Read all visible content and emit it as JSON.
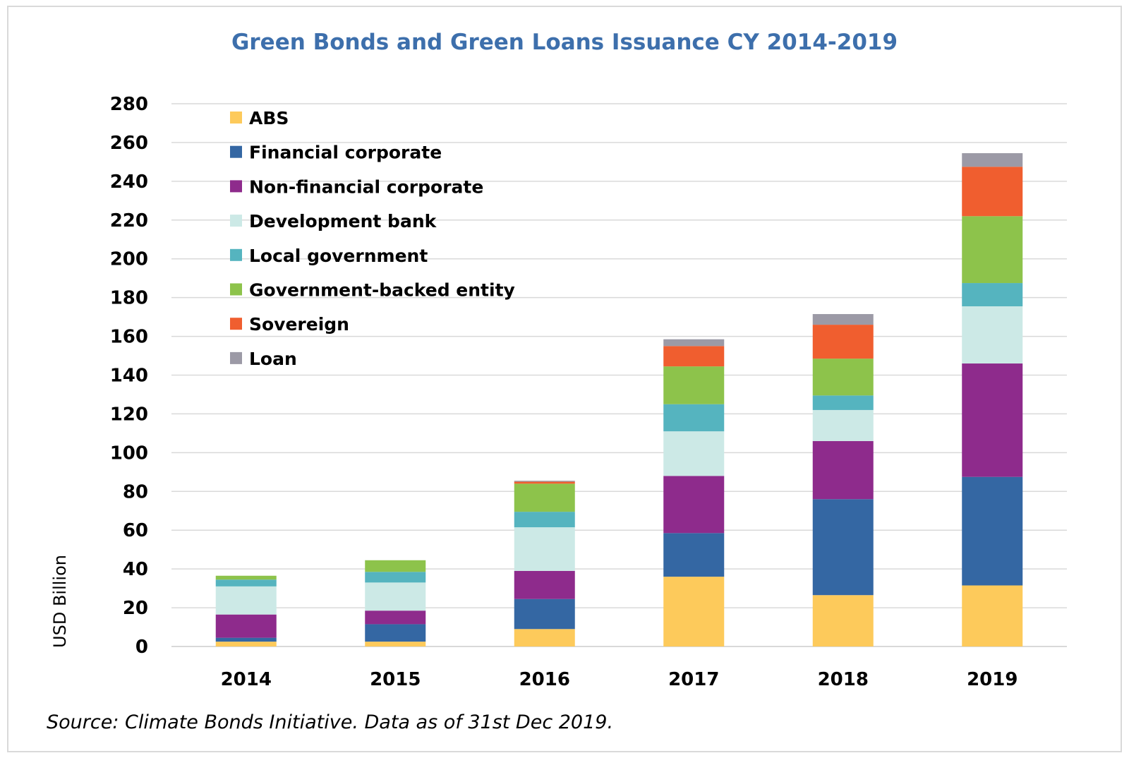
{
  "chart_data": {
    "type": "bar",
    "stacked": true,
    "title": "Green Bonds and Green Loans Issuance CY 2014-2019",
    "ylabel": "USD Billion",
    "xlabel": "",
    "ylim": [
      0,
      280
    ],
    "yticks": [
      0,
      20,
      40,
      60,
      80,
      100,
      120,
      140,
      160,
      180,
      200,
      220,
      240,
      260,
      280
    ],
    "grid": true,
    "legend_position": "top-left",
    "categories": [
      "2014",
      "2015",
      "2016",
      "2017",
      "2018",
      "2019"
    ],
    "series": [
      {
        "name": "ABS",
        "color": "#fdca5b",
        "values": [
          2.5,
          2.5,
          9,
          36,
          26.5,
          31.5
        ]
      },
      {
        "name": "Financial corporate",
        "color": "#3467a3",
        "values": [
          2,
          9,
          15.5,
          22.5,
          49.5,
          56
        ]
      },
      {
        "name": "Non-financial corporate",
        "color": "#8e2b8c",
        "values": [
          12,
          7,
          14.5,
          29.5,
          30,
          58.5
        ]
      },
      {
        "name": "Development bank",
        "color": "#cce9e6",
        "values": [
          14.5,
          14.5,
          22.5,
          23,
          16,
          29.5
        ]
      },
      {
        "name": "Local government",
        "color": "#55b4bf",
        "values": [
          3.5,
          5.5,
          8,
          14,
          7.5,
          12
        ]
      },
      {
        "name": "Government-backed entity",
        "color": "#8dc34b",
        "values": [
          2,
          6,
          14.5,
          19.5,
          19,
          34.5
        ]
      },
      {
        "name": "Sovereign",
        "color": "#f05e2f",
        "values": [
          0,
          0,
          1,
          10.5,
          17.5,
          25.5
        ]
      },
      {
        "name": "Loan",
        "color": "#9c9aa6",
        "values": [
          0,
          0,
          0.5,
          3.5,
          5.5,
          7
        ]
      }
    ],
    "source": "Source: Climate Bonds Initiative. Data as of 31st Dec 2019."
  }
}
